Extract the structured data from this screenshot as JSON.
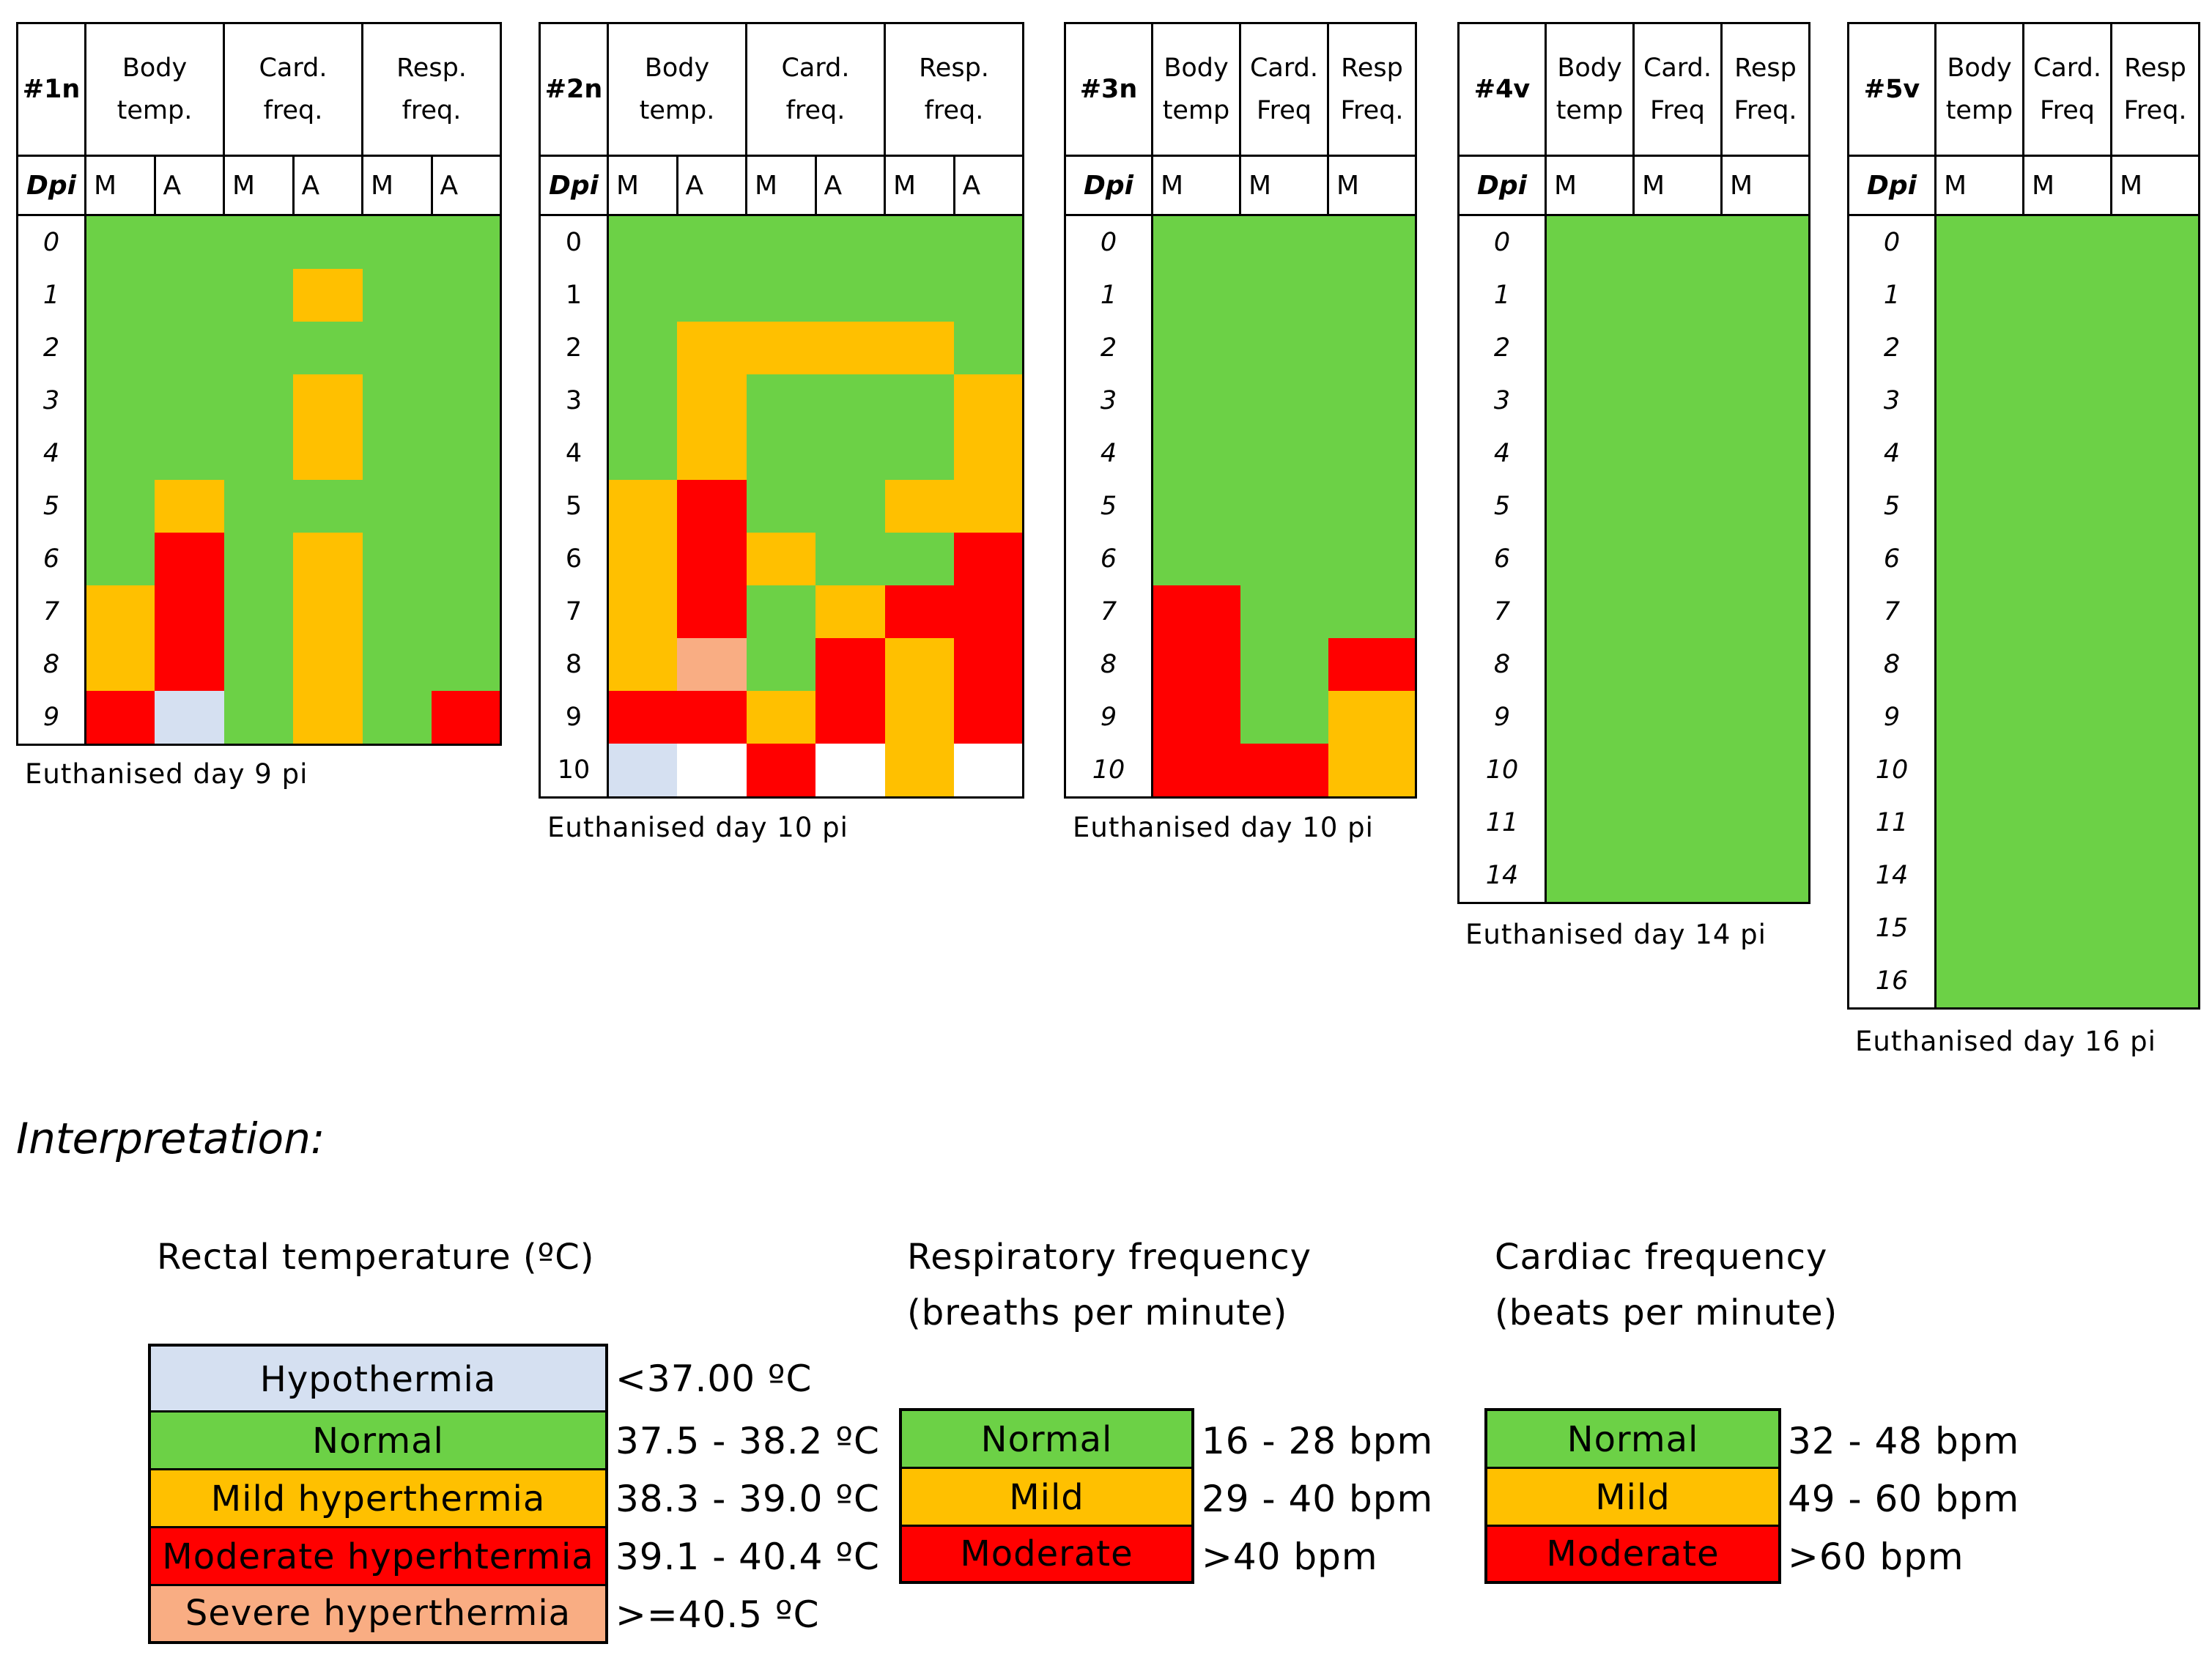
{
  "colors": {
    "normal": "#6cd146",
    "mild": "#ffc000",
    "moderate": "#ff0000",
    "severe": "#f9ad83",
    "hypothermia": "#d5e0f1",
    "none": "#ffffff"
  },
  "animals": [
    {
      "id": "#1n",
      "headers": [
        "Body temp.",
        "Card. freq.",
        "Resp. freq."
      ],
      "subheaders": [
        "M",
        "A",
        "M",
        "A",
        "M",
        "A"
      ],
      "dpi_label": "Dpi",
      "dpi": [
        "0",
        "1",
        "2",
        "3",
        "4",
        "5",
        "6",
        "7",
        "8",
        "9"
      ],
      "rows": [
        [
          "N",
          "N",
          "N",
          "N",
          "N",
          "N"
        ],
        [
          "N",
          "N",
          "N",
          "Mi",
          "N",
          "N"
        ],
        [
          "N",
          "N",
          "N",
          "N",
          "N",
          "N"
        ],
        [
          "N",
          "N",
          "N",
          "Mi",
          "N",
          "N"
        ],
        [
          "N",
          "N",
          "N",
          "Mi",
          "N",
          "N"
        ],
        [
          "N",
          "Mi",
          "N",
          "N",
          "N",
          "N"
        ],
        [
          "N",
          "Mo",
          "N",
          "Mi",
          "N",
          "N"
        ],
        [
          "Mi",
          "Mo",
          "N",
          "Mi",
          "N",
          "N"
        ],
        [
          "Mi",
          "Mo",
          "N",
          "Mi",
          "N",
          "N"
        ],
        [
          "Mo",
          "H",
          "N",
          "Mi",
          "N",
          "Mo"
        ]
      ],
      "caption": "Euthanised day 9 pi"
    },
    {
      "id": "#2n",
      "headers": [
        "Body temp.",
        "Card. freq.",
        "Resp. freq."
      ],
      "subheaders": [
        "M",
        "A",
        "M",
        "A",
        "M",
        "A"
      ],
      "dpi_label": "Dpi",
      "dpi": [
        "0",
        "1",
        "2",
        "3",
        "4",
        "5",
        "6",
        "7",
        "8",
        "9",
        "10"
      ],
      "rows": [
        [
          "N",
          "N",
          "N",
          "N",
          "N",
          "N"
        ],
        [
          "N",
          "N",
          "N",
          "N",
          "N",
          "N"
        ],
        [
          "N",
          "Mi",
          "Mi",
          "Mi",
          "Mi",
          "N"
        ],
        [
          "N",
          "Mi",
          "N",
          "N",
          "N",
          "Mi"
        ],
        [
          "N",
          "Mi",
          "N",
          "N",
          "N",
          "Mi"
        ],
        [
          "Mi",
          "Mo",
          "N",
          "N",
          "Mi",
          "Mi"
        ],
        [
          "Mi",
          "Mo",
          "Mi",
          "N",
          "N",
          "Mo"
        ],
        [
          "Mi",
          "Mo",
          "N",
          "Mi",
          "Mo",
          "Mo"
        ],
        [
          "Mi",
          "S",
          "N",
          "Mo",
          "Mi",
          "Mo"
        ],
        [
          "Mo",
          "Mo",
          "Mi",
          "Mo",
          "Mi",
          "Mo"
        ],
        [
          "H",
          "X",
          "Mo",
          "X",
          "Mi",
          "X"
        ]
      ],
      "caption": "Euthanised day 10 pi"
    },
    {
      "id": "#3n",
      "headers": [
        "Body temp",
        "Card. Freq",
        "Resp Freq."
      ],
      "subheaders": [
        "M",
        "M",
        "M"
      ],
      "dpi_label": "Dpi",
      "dpi": [
        "0",
        "1",
        "2",
        "3",
        "4",
        "5",
        "6",
        "7",
        "8",
        "9",
        "10"
      ],
      "rows": [
        [
          "N",
          "N",
          "N"
        ],
        [
          "N",
          "N",
          "N"
        ],
        [
          "N",
          "N",
          "N"
        ],
        [
          "N",
          "N",
          "N"
        ],
        [
          "N",
          "N",
          "N"
        ],
        [
          "N",
          "N",
          "N"
        ],
        [
          "N",
          "N",
          "N"
        ],
        [
          "Mo",
          "N",
          "N"
        ],
        [
          "Mo",
          "N",
          "Mo"
        ],
        [
          "Mo",
          "N",
          "Mi"
        ],
        [
          "Mo",
          "Mo",
          "Mi"
        ]
      ],
      "caption": "Euthanised day 10 pi"
    },
    {
      "id": "#4v",
      "headers": [
        "Body temp",
        "Card. Freq",
        "Resp Freq."
      ],
      "subheaders": [
        "M",
        "M",
        "M"
      ],
      "dpi_label": "Dpi",
      "dpi": [
        "0",
        "1",
        "2",
        "3",
        "4",
        "5",
        "6",
        "7",
        "8",
        "9",
        "10",
        "11",
        "14"
      ],
      "rows": [
        [
          "N",
          "N",
          "N"
        ],
        [
          "N",
          "N",
          "N"
        ],
        [
          "N",
          "N",
          "N"
        ],
        [
          "N",
          "N",
          "N"
        ],
        [
          "N",
          "N",
          "N"
        ],
        [
          "N",
          "N",
          "N"
        ],
        [
          "N",
          "N",
          "N"
        ],
        [
          "N",
          "N",
          "N"
        ],
        [
          "N",
          "N",
          "N"
        ],
        [
          "N",
          "N",
          "N"
        ],
        [
          "N",
          "N",
          "N"
        ],
        [
          "N",
          "N",
          "N"
        ],
        [
          "N",
          "N",
          "N"
        ]
      ],
      "caption": "Euthanised day 14 pi"
    },
    {
      "id": "#5v",
      "headers": [
        "Body temp",
        "Card. Freq",
        "Resp Freq."
      ],
      "subheaders": [
        "M",
        "M",
        "M"
      ],
      "dpi_label": "Dpi",
      "dpi": [
        "0",
        "1",
        "2",
        "3",
        "4",
        "5",
        "6",
        "7",
        "8",
        "9",
        "10",
        "11",
        "14",
        "15",
        "16"
      ],
      "rows": [
        [
          "N",
          "N",
          "N"
        ],
        [
          "N",
          "N",
          "N"
        ],
        [
          "N",
          "N",
          "N"
        ],
        [
          "N",
          "N",
          "N"
        ],
        [
          "N",
          "N",
          "N"
        ],
        [
          "N",
          "N",
          "N"
        ],
        [
          "N",
          "N",
          "N"
        ],
        [
          "N",
          "N",
          "N"
        ],
        [
          "N",
          "N",
          "N"
        ],
        [
          "N",
          "N",
          "N"
        ],
        [
          "N",
          "N",
          "N"
        ],
        [
          "N",
          "N",
          "N"
        ],
        [
          "N",
          "N",
          "N"
        ],
        [
          "N",
          "N",
          "N"
        ],
        [
          "N",
          "N",
          "N"
        ]
      ],
      "caption": "Euthanised day 16 pi"
    }
  ],
  "interpretation": {
    "title": "Interpretation:",
    "temperature": {
      "title": "Rectal temperature (ºC)",
      "items": [
        {
          "label": "Hypothermia",
          "range": "<37.00 ºC",
          "color": "#d5e0f1"
        },
        {
          "label": "Normal",
          "range": "37.5 - 38.2 ºC",
          "color": "#6cd146"
        },
        {
          "label": "Mild hyperthermia",
          "range": "38.3 - 39.0 ºC",
          "color": "#ffc000"
        },
        {
          "label": "Moderate hyperhtermia",
          "range": "39.1 - 40.4  ºC",
          "color": "#ff0000"
        },
        {
          "label": "Severe hyperthermia",
          "range": ">=40.5 ºC",
          "color": "#f9ad83"
        }
      ]
    },
    "respiratory": {
      "title_line1": "Respiratory frequency",
      "title_line2": "(breaths per minute)",
      "items": [
        {
          "label": "Normal",
          "range": "16 - 28 bpm",
          "color": "#6cd146"
        },
        {
          "label": "Mild",
          "range": "29 - 40 bpm",
          "color": "#ffc000"
        },
        {
          "label": "Moderate",
          "range": ">40 bpm",
          "color": "#ff0000"
        }
      ]
    },
    "cardiac": {
      "title_line1": "Cardiac frequency",
      "title_line2": "(beats per minute)",
      "items": [
        {
          "label": "Normal",
          "range": "32 - 48 bpm",
          "color": "#6cd146"
        },
        {
          "label": "Mild",
          "range": "49 - 60 bpm",
          "color": "#ffc000"
        },
        {
          "label": "Moderate",
          "range": ">60 bpm",
          "color": "#ff0000"
        }
      ]
    }
  }
}
